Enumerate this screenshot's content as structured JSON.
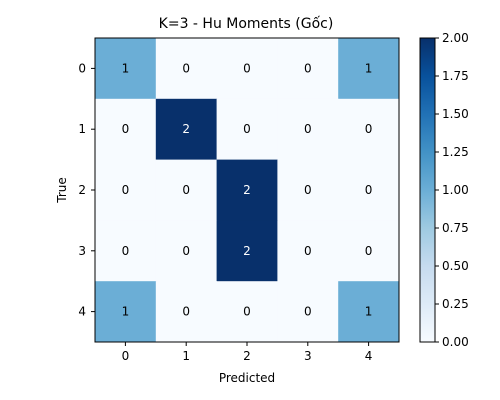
{
  "chart_data": {
    "type": "heatmap",
    "title": "K=3 - Hu Moments (Gốc)",
    "xlabel": "Predicted",
    "ylabel": "True",
    "x_ticks": [
      "0",
      "1",
      "2",
      "3",
      "4"
    ],
    "y_ticks": [
      "0",
      "1",
      "2",
      "3",
      "4"
    ],
    "matrix": [
      [
        1,
        0,
        0,
        0,
        1
      ],
      [
        0,
        2,
        0,
        0,
        0
      ],
      [
        0,
        0,
        2,
        0,
        0
      ],
      [
        0,
        0,
        2,
        0,
        0
      ],
      [
        1,
        0,
        0,
        0,
        1
      ]
    ],
    "colormap": "Blues",
    "colorbar": {
      "min": 0,
      "max": 2,
      "ticks": [
        "0.00",
        "0.25",
        "0.50",
        "0.75",
        "1.00",
        "1.25",
        "1.50",
        "1.75",
        "2.00"
      ]
    },
    "colors": {
      "low": "#f7fbff",
      "mid": "#6baed6",
      "high": "#08306b"
    }
  }
}
